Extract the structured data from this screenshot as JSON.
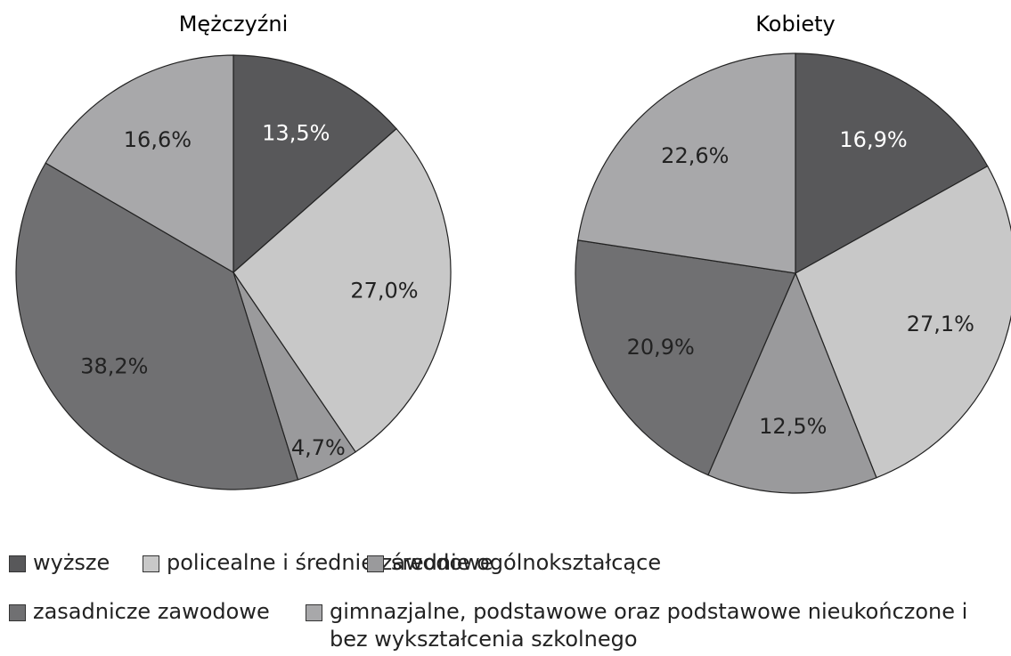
{
  "legend": {
    "categories": [
      "wyższe",
      "policealne i średnie zawodowe",
      "średnie ogólnokształcące",
      "zasadnicze zawodowe",
      "gimnazjalne, podstawowe oraz podstawowe nieukończone i bez wykształcenia szkolnego"
    ],
    "colors": [
      "#58585a",
      "#c8c8c8",
      "#9a9a9c",
      "#707072",
      "#a8a8aa"
    ]
  },
  "chart_data": [
    {
      "type": "pie",
      "title": "Mężczyźni",
      "values": [
        13.5,
        27.0,
        4.7,
        38.2,
        16.6
      ],
      "value_labels": [
        "13,5%",
        "27,0%",
        "4,7%",
        "38,2%",
        "16,6%"
      ]
    },
    {
      "type": "pie",
      "title": "Kobiety",
      "values": [
        16.9,
        27.1,
        12.5,
        20.9,
        22.6
      ],
      "value_labels": [
        "16,9%",
        "27,1%",
        "12,5%",
        "20,9%",
        "22,6%"
      ]
    }
  ]
}
